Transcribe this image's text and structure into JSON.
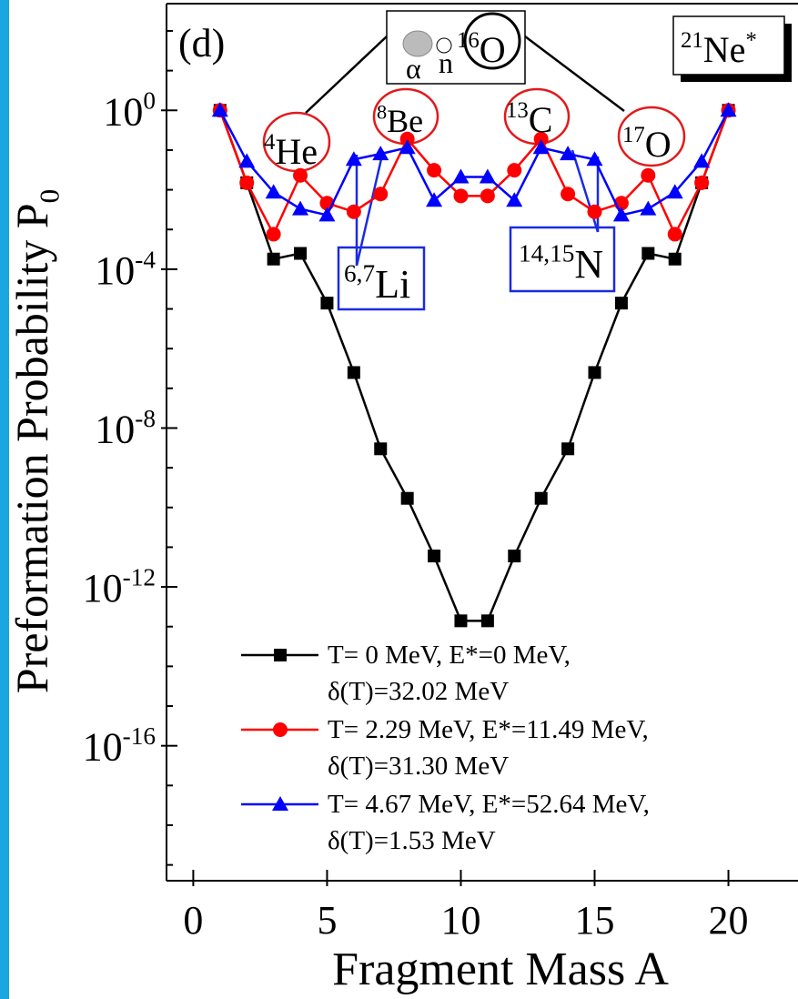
{
  "chart_data": {
    "type": "line",
    "y_label": "Preformation Probability P",
    "y_label_sub": "0",
    "x_label": "Fragment Mass A",
    "log_y": true,
    "xlim": [
      -1,
      22.6
    ],
    "ylim": [
      4e-20,
      600
    ],
    "xticks": [
      0,
      5,
      10,
      15,
      20
    ],
    "yticks": [
      {
        "value": 1,
        "label": "10",
        "sup": "0"
      },
      {
        "value": 0.0001,
        "label": "10",
        "sup": "-4"
      },
      {
        "value": 1e-08,
        "label": "10",
        "sup": "-8"
      },
      {
        "value": 1e-12,
        "label": "10",
        "sup": "-12"
      },
      {
        "value": 1e-16,
        "label": "10",
        "sup": "-16"
      }
    ],
    "yminor": [
      100,
      10,
      0.1,
      0.01,
      0.001,
      1e-05,
      1e-06,
      1e-07,
      1e-09,
      1e-10,
      1e-11,
      1e-13,
      1e-14,
      1e-15,
      1e-17,
      1e-18,
      1e-19
    ],
    "x": [
      1,
      2,
      3,
      4,
      5,
      6,
      7,
      8,
      9,
      10,
      11,
      12,
      13,
      14,
      15,
      16,
      17,
      18,
      19,
      20
    ],
    "series": [
      {
        "name": "T= 0 MeV, E*=0 MeV,",
        "detail": "δ(T)=32.02 MeV",
        "color": "#000000",
        "marker": "square",
        "values": [
          1,
          0.015,
          0.00018,
          0.00025,
          1.4e-05,
          2.5e-07,
          3e-09,
          1.7e-10,
          6e-12,
          1.4e-13,
          1.4e-13,
          6e-12,
          1.7e-10,
          3e-09,
          2.5e-07,
          1.4e-05,
          0.00025,
          0.00018,
          0.015,
          1
        ]
      },
      {
        "name": "T= 2.29 MeV, E*=11.49 MeV,",
        "detail": "δ(T)=31.30 MeV",
        "color": "#ff0000",
        "marker": "circle",
        "values": [
          1,
          0.015,
          0.00076,
          0.023,
          0.0046,
          0.0028,
          0.0078,
          0.19,
          0.031,
          0.007,
          0.007,
          0.031,
          0.19,
          0.0078,
          0.0028,
          0.0046,
          0.023,
          0.00076,
          0.015,
          1
        ]
      },
      {
        "name": "T= 4.67 MeV, E*=52.64 MeV,",
        "detail": "δ(T)=1.53 MeV",
        "color": "#0000ff",
        "marker": "triangle",
        "values": [
          1,
          0.052,
          0.0087,
          0.0033,
          0.0023,
          0.058,
          0.08,
          0.115,
          0.0054,
          0.021,
          0.021,
          0.0054,
          0.115,
          0.08,
          0.058,
          0.0023,
          0.0033,
          0.0087,
          0.052,
          1
        ]
      }
    ],
    "panel_label": "(d)",
    "nucleus": {
      "sup": "21",
      "text": "Ne",
      "sup2": "*"
    },
    "inset": {
      "alpha": "α",
      "n": "n",
      "sup": "16",
      "text": "O"
    },
    "annotations": [
      {
        "sup": "4",
        "text": "He"
      },
      {
        "sup": "8",
        "text": "Be"
      },
      {
        "sup": "13",
        "text": "C"
      },
      {
        "sup": "17",
        "text": "O"
      },
      {
        "sup": "6,7",
        "text": "Li"
      },
      {
        "sup": "14,15",
        "text": "N"
      }
    ]
  }
}
